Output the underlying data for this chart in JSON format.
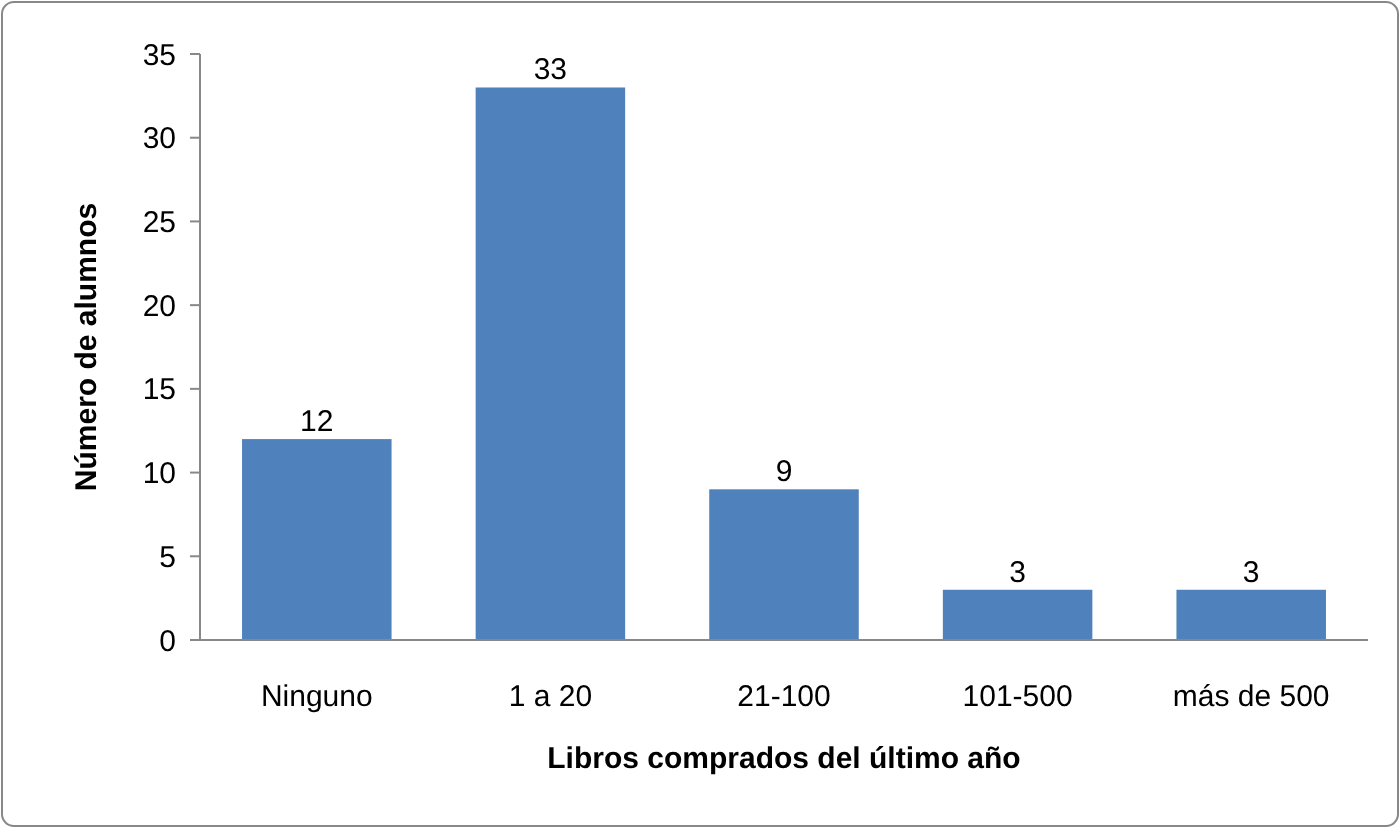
{
  "chart_data": {
    "type": "bar",
    "xlabel": "Libros comprados del último año",
    "ylabel": "Número de alumnos",
    "categories": [
      "Ninguno",
      "1 a 20",
      "21-100",
      "101-500",
      "más de 500"
    ],
    "values": [
      12,
      33,
      9,
      3,
      3
    ],
    "color": "#4f81bd",
    "ylim": [
      0,
      35
    ],
    "yticks": [
      0,
      5,
      10,
      15,
      20,
      25,
      30,
      35
    ],
    "grid": false,
    "data_labels": true
  }
}
